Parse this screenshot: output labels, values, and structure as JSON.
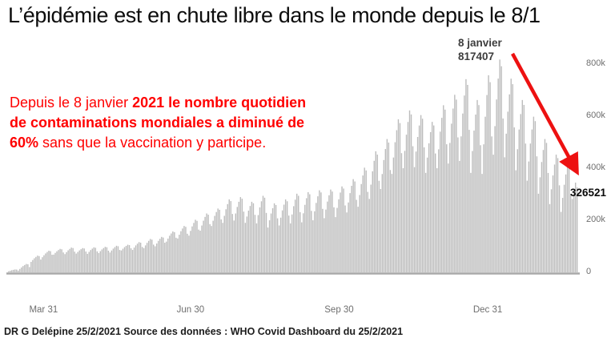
{
  "title": "L’épidémie est en chute libre dans le monde depuis le 8/1",
  "callout": {
    "color": "#ff0000",
    "lines": [
      [
        {
          "text": "Depuis le 8 janvier ",
          "bold": false
        },
        {
          "text": "2021 le nombre quotidien",
          "bold": true
        }
      ],
      [
        {
          "text": "de contaminations mondiales  a diminué de",
          "bold": true
        }
      ],
      [
        {
          "text": "60%",
          "bold": true
        },
        {
          "text": " sans que la vaccination y participe.",
          "bold": false
        }
      ]
    ]
  },
  "annotation": {
    "peak_date": "8 janvier",
    "peak_value": "817407",
    "arrow_color": "#ed1111"
  },
  "end_value_label": "326521",
  "footer": "DR G Delépine 25/2/2021  Source des données : WHO Covid Dashboard du 25/2/2021",
  "chart_data": {
    "type": "bar",
    "title": "Daily worldwide COVID-19 new cases (WHO)",
    "xlabel": "",
    "ylabel": "",
    "ylim": [
      0,
      860000
    ],
    "grid": false,
    "bar_color": "#bcbcbc",
    "baseline_color": "#a8a8a8",
    "peak": {
      "date": "8 janvier",
      "value": 817407
    },
    "last": {
      "date": "25/2/2021",
      "value": 326521
    },
    "y_ticks": [
      {
        "label": "800k",
        "value": 800000
      },
      {
        "label": "600k",
        "value": 600000
      },
      {
        "label": "400k",
        "value": 400000
      },
      {
        "label": "200k",
        "value": 200000
      },
      {
        "label": "0",
        "value": 0
      }
    ],
    "x_ticks": [
      {
        "label": "Mar 31",
        "day_index": 22
      },
      {
        "label": "Jun 30",
        "day_index": 113
      },
      {
        "label": "Sep 30",
        "day_index": 205
      },
      {
        "label": "Dec 31",
        "day_index": 297
      }
    ],
    "start_date": "2020-03-09",
    "weekday_pattern": [
      0,
      0.3,
      0.58,
      0.8,
      1,
      0.93,
      0.38
    ],
    "weekly_envelope": [
      {
        "week": "2020-03-09",
        "lo": 4000,
        "hi": 11000
      },
      {
        "week": "2020-03-16",
        "lo": 13000,
        "hi": 32000
      },
      {
        "week": "2020-03-23",
        "lo": 40000,
        "hi": 64000
      },
      {
        "week": "2020-03-30",
        "lo": 58000,
        "hi": 83000
      },
      {
        "week": "2020-04-06",
        "lo": 68000,
        "hi": 90000
      },
      {
        "week": "2020-04-13",
        "lo": 70000,
        "hi": 95000
      },
      {
        "week": "2020-04-20",
        "lo": 72000,
        "hi": 93000
      },
      {
        "week": "2020-04-27",
        "lo": 71000,
        "hi": 96000
      },
      {
        "week": "2020-05-04",
        "lo": 74000,
        "hi": 98000
      },
      {
        "week": "2020-05-11",
        "lo": 76000,
        "hi": 102000
      },
      {
        "week": "2020-05-18",
        "lo": 84000,
        "hi": 106000
      },
      {
        "week": "2020-05-25",
        "lo": 86000,
        "hi": 116000
      },
      {
        "week": "2020-06-01",
        "lo": 93000,
        "hi": 128000
      },
      {
        "week": "2020-06-08",
        "lo": 100000,
        "hi": 136000
      },
      {
        "week": "2020-06-15",
        "lo": 118000,
        "hi": 157000
      },
      {
        "week": "2020-06-22",
        "lo": 130000,
        "hi": 178000
      },
      {
        "week": "2020-06-29",
        "lo": 141000,
        "hi": 202000
      },
      {
        "week": "2020-07-06",
        "lo": 160000,
        "hi": 226000
      },
      {
        "week": "2020-07-13",
        "lo": 178000,
        "hi": 245000
      },
      {
        "week": "2020-07-20",
        "lo": 190000,
        "hi": 280000
      },
      {
        "week": "2020-07-27",
        "lo": 199000,
        "hi": 289000
      },
      {
        "week": "2020-08-03",
        "lo": 190000,
        "hi": 271000
      },
      {
        "week": "2020-08-10",
        "lo": 188000,
        "hi": 294000
      },
      {
        "week": "2020-08-17",
        "lo": 172000,
        "hi": 265000
      },
      {
        "week": "2020-08-24",
        "lo": 180000,
        "hi": 280000
      },
      {
        "week": "2020-08-31",
        "lo": 188000,
        "hi": 302000
      },
      {
        "week": "2020-09-07",
        "lo": 192000,
        "hi": 308000
      },
      {
        "week": "2020-09-14",
        "lo": 200000,
        "hi": 315000
      },
      {
        "week": "2020-09-21",
        "lo": 208000,
        "hi": 318000
      },
      {
        "week": "2020-09-28",
        "lo": 212000,
        "hi": 330000
      },
      {
        "week": "2020-10-05",
        "lo": 230000,
        "hi": 358000
      },
      {
        "week": "2020-10-12",
        "lo": 252000,
        "hi": 402000
      },
      {
        "week": "2020-10-19",
        "lo": 282000,
        "hi": 465000
      },
      {
        "week": "2020-10-26",
        "lo": 320000,
        "hi": 512000
      },
      {
        "week": "2020-11-02",
        "lo": 378000,
        "hi": 588000
      },
      {
        "week": "2020-11-09",
        "lo": 400000,
        "hi": 622000
      },
      {
        "week": "2020-11-16",
        "lo": 404000,
        "hi": 604000
      },
      {
        "week": "2020-11-23",
        "lo": 382000,
        "hi": 578000
      },
      {
        "week": "2020-11-30",
        "lo": 400000,
        "hi": 642000
      },
      {
        "week": "2020-12-07",
        "lo": 418000,
        "hi": 682000
      },
      {
        "week": "2020-12-14",
        "lo": 428000,
        "hi": 742000
      },
      {
        "week": "2020-12-21",
        "lo": 382000,
        "hi": 662000
      },
      {
        "week": "2020-12-28",
        "lo": 378000,
        "hi": 757000
      },
      {
        "week": "2021-01-04",
        "lo": 452000,
        "hi": 817407
      },
      {
        "week": "2021-01-11",
        "lo": 442000,
        "hi": 744000
      },
      {
        "week": "2021-01-18",
        "lo": 392000,
        "hi": 662000
      },
      {
        "week": "2021-01-25",
        "lo": 352000,
        "hi": 598000
      },
      {
        "week": "2021-02-01",
        "lo": 302000,
        "hi": 512000
      },
      {
        "week": "2021-02-08",
        "lo": 262000,
        "hi": 452000
      },
      {
        "week": "2021-02-15",
        "lo": 232000,
        "hi": 412000
      },
      {
        "week": "2021-02-22",
        "lo": 282000,
        "hi": 390000,
        "days": 4
      }
    ]
  }
}
